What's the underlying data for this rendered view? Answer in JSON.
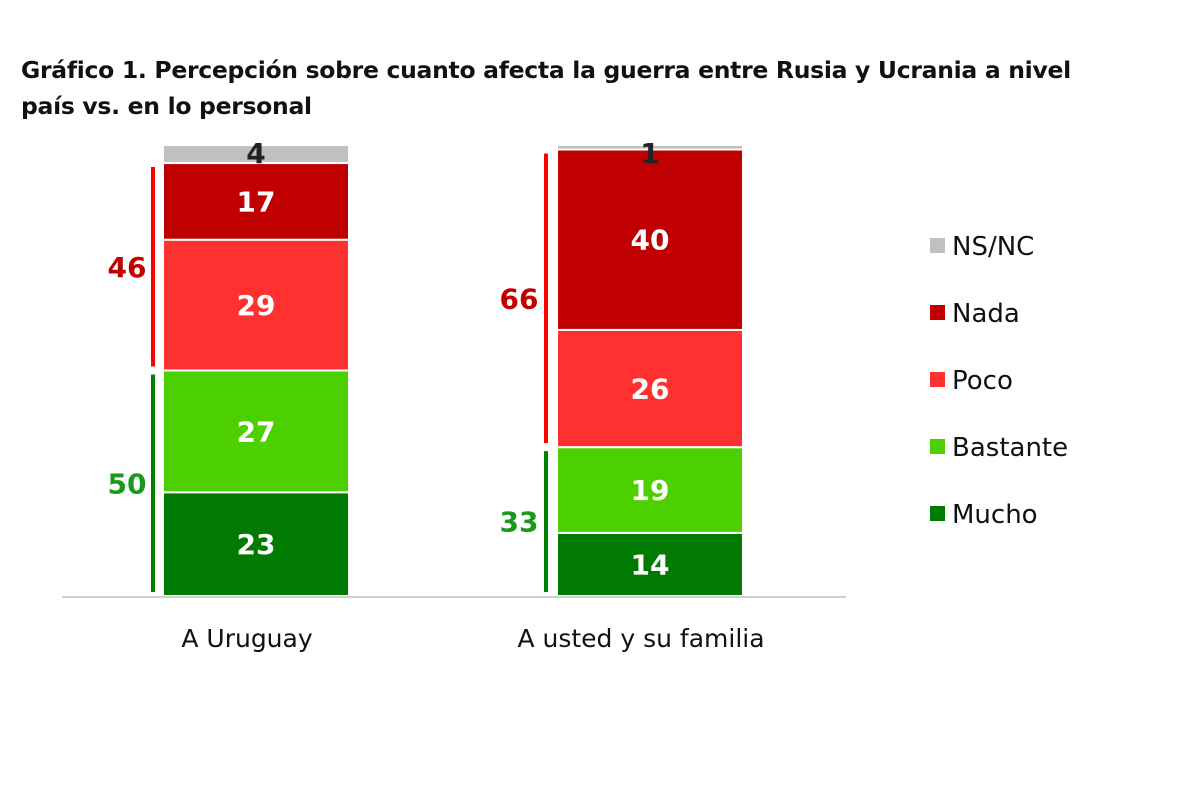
{
  "chart_data": {
    "type": "bar",
    "stacked": true,
    "title": "Gráfico 1. Percepción sobre cuanto afecta la guerra entre Rusia y Ucrania a nivel país vs. en lo personal",
    "title_lines": [
      "Gráfico 1. Percepción sobre cuanto afecta la guerra entre Rusia y Ucrania a nivel",
      "país vs. en lo personal"
    ],
    "categories": [
      "A Uruguay",
      "A usted y su familia"
    ],
    "series": [
      {
        "name": "Mucho",
        "color": "#007a00",
        "values": [
          23,
          14
        ],
        "labels": [
          "23",
          "14"
        ]
      },
      {
        "name": "Bastante",
        "color": "#4cd000",
        "values": [
          27,
          19
        ],
        "labels": [
          "27",
          "19"
        ]
      },
      {
        "name": "Poco",
        "color": "#ff3030",
        "values": [
          29,
          26
        ],
        "labels": [
          "29",
          "26"
        ]
      },
      {
        "name": "Nada",
        "color": "#c00000",
        "values": [
          17,
          40
        ],
        "labels": [
          "17",
          "40"
        ]
      },
      {
        "name": "NS/NC",
        "color": "#c0c0c0",
        "values": [
          4,
          1
        ],
        "labels": [
          "4",
          "1"
        ]
      }
    ],
    "legend": {
      "position": "right",
      "order": [
        "NS/NC",
        "Nada",
        "Poco",
        "Bastante",
        "Mucho"
      ]
    },
    "group_totals": [
      {
        "name": "Poco + Nada",
        "color": "#ff0000",
        "text_color": "#c00000",
        "values": [
          46,
          66
        ],
        "labels": [
          "46",
          "66"
        ]
      },
      {
        "name": "Mucho + Bastante",
        "color": "#008000",
        "text_color": "#1a9a1a",
        "values": [
          50,
          33
        ],
        "labels": [
          "50",
          "33"
        ]
      }
    ],
    "xlabel": "",
    "ylabel": "",
    "ylim": [
      0,
      100
    ],
    "grid": false
  }
}
